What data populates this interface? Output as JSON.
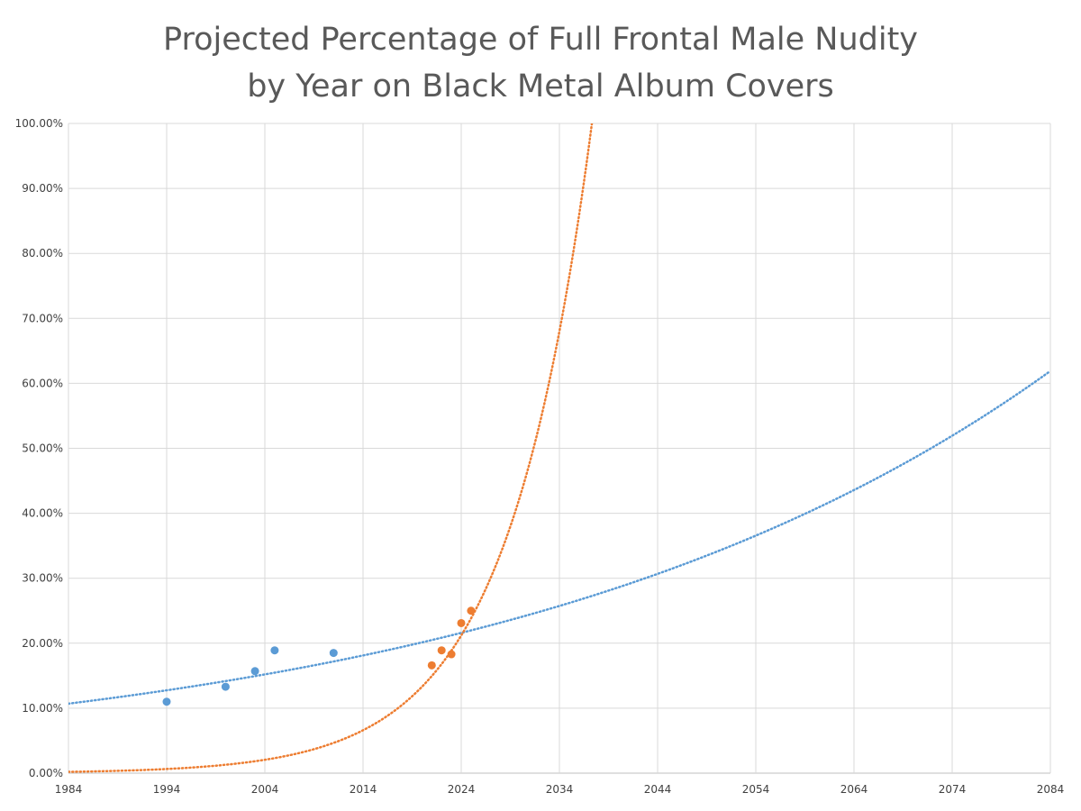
{
  "chart_data": {
    "type": "scatter",
    "title": "Projected Percentage of Full Frontal Male Nudity",
    "subtitle": "by Year on Black Metal Album Covers",
    "xlabel": "",
    "ylabel": "",
    "xlim": [
      1984,
      2084
    ],
    "ylim": [
      0,
      1
    ],
    "x_ticks": [
      "1984",
      "1994",
      "2004",
      "2014",
      "2024",
      "2034",
      "2044",
      "2054",
      "2064",
      "2074",
      "2084"
    ],
    "y_ticks": [
      "0.00%",
      "10.00%",
      "20.00%",
      "30.00%",
      "40.00%",
      "50.00%",
      "60.00%",
      "70.00%",
      "80.00%",
      "90.00%",
      "100.00%"
    ],
    "grid": true,
    "legend": "none",
    "series": [
      {
        "color": "#5b9bd5",
        "points": [
          {
            "x": 1994,
            "y": 0.11
          },
          {
            "x": 2000,
            "y": 0.133
          },
          {
            "x": 2003,
            "y": 0.157
          },
          {
            "x": 2005,
            "y": 0.189
          },
          {
            "x": 2011,
            "y": 0.185
          }
        ],
        "trendline": {
          "type": "exponential",
          "style": "dotted",
          "x0": 1984,
          "y0": 0.107,
          "x1": 2084,
          "y1": 0.619
        }
      },
      {
        "color": "#ed7d31",
        "points": [
          {
            "x": 2021,
            "y": 0.166
          },
          {
            "x": 2022,
            "y": 0.189
          },
          {
            "x": 2023,
            "y": 0.183
          },
          {
            "x": 2024,
            "y": 0.231
          },
          {
            "x": 2025,
            "y": 0.25
          }
        ],
        "trendline": {
          "type": "exponential",
          "style": "dotted",
          "x0": 1984,
          "y0": 0.002,
          "x1": 2034,
          "y1": 0.68,
          "x_end": 2084
        }
      }
    ]
  }
}
